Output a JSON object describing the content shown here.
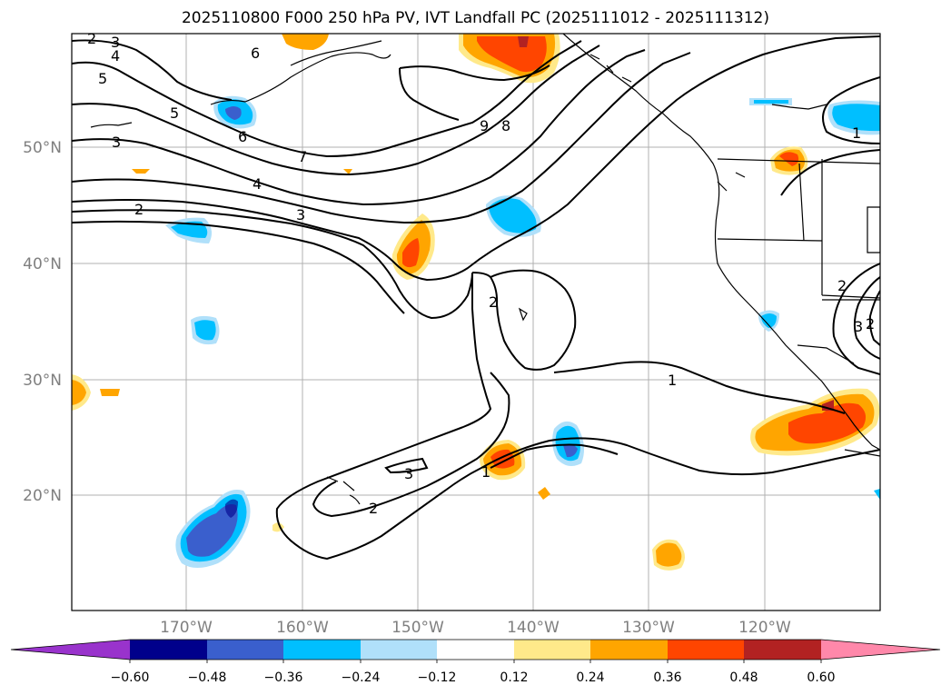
{
  "title": "2025110800 F000 250 hPa PV, IVT Landfall PC (2025111012 - 2025111312)",
  "lat_labels": [
    "50°N",
    "40°N",
    "30°N",
    "20°N"
  ],
  "lon_labels": [
    "170°W",
    "160°W",
    "150°W",
    "140°W",
    "130°W",
    "120°W"
  ],
  "colorbar": {
    "ticks": [
      "−0.60",
      "−0.48",
      "−0.36",
      "−0.24",
      "−0.12",
      "0.12",
      "0.24",
      "0.36",
      "0.48",
      "0.60"
    ],
    "colors": [
      "#9933cc",
      "#00008b",
      "#3a5fcd",
      "#00bfff",
      "#b0e0fa",
      "#ffffff",
      "#ffe98a",
      "#ffa500",
      "#ff4500",
      "#b22222",
      "#ff88aa"
    ]
  },
  "contour_labels": [
    "2",
    "3",
    "4",
    "5",
    "6",
    "3",
    "5",
    "6",
    "7",
    "4",
    "3",
    "2",
    "9",
    "8",
    "1",
    "2",
    "1",
    "2",
    "3",
    "2",
    "1",
    "3",
    "2"
  ]
}
